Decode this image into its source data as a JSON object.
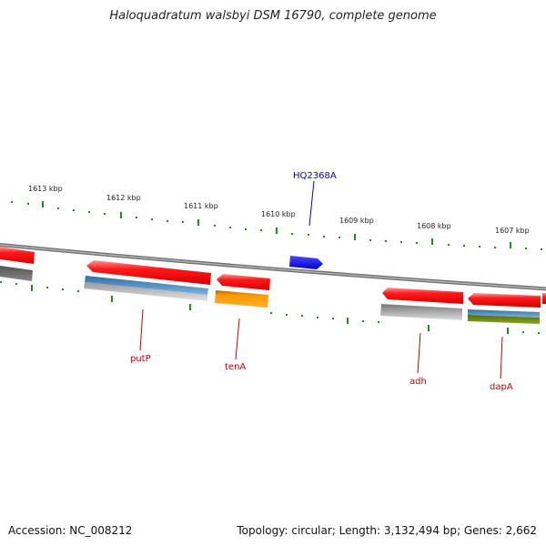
{
  "title": "Haloquadratum walsbyi DSM 16790, complete genome",
  "footer": {
    "accession": "Accession: NC_008212",
    "summary": "Topology: circular; Length: 3,132,494 bp; Genes: 2,662"
  },
  "colors": {
    "forward_strand": "#ff0000",
    "highlight_gene": "#0000ff",
    "tick": "#228b22",
    "backbone": "#808080",
    "label_red": "#cc0000",
    "label_blue": "#0000cc"
  },
  "ticks": [
    "1613 kbp",
    "1612 kbp",
    "1611 kbp",
    "1610 kbp",
    "1609 kbp",
    "1608 kbp",
    "1607 kbp"
  ],
  "gene_labels": [
    {
      "name": "HQ2368A",
      "color": "#0000cc"
    },
    {
      "name": "putP",
      "color": "#cc0000"
    },
    {
      "name": "tenA",
      "color": "#cc0000"
    },
    {
      "name": "adh",
      "color": "#cc0000"
    },
    {
      "name": "dapA",
      "color": "#cc0000"
    }
  ]
}
